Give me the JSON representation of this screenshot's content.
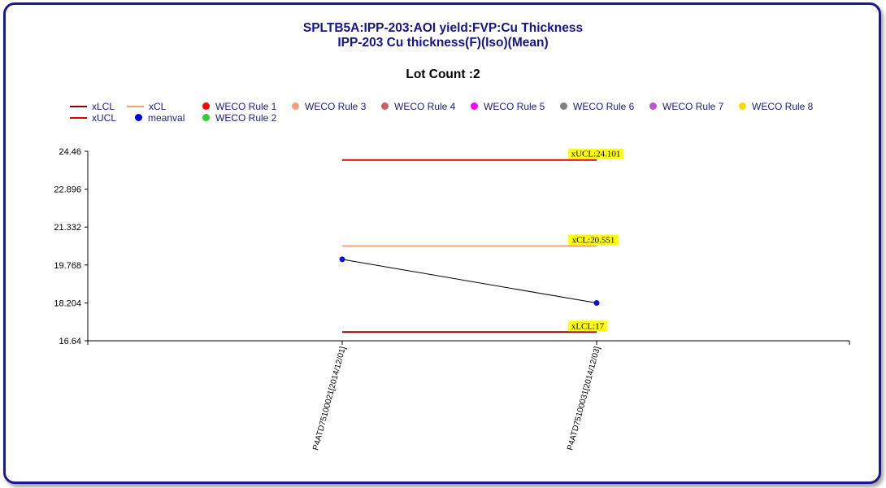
{
  "chart_data": {
    "type": "line",
    "title": "SPLTB5A:IPP-203:AOI yield:FVP:Cu Thickness",
    "subtitle": "IPP-203 Cu thickness(F)(Iso)(Mean)",
    "lot_count_label": "Lot Count :2",
    "categories": [
      "P4ATD75100021[2014/12/01]",
      "P4ATD75100031[2014/12/03]"
    ],
    "ylim": [
      16.64,
      24.46
    ],
    "yticks": [
      "24.46",
      "22.896",
      "21.332",
      "19.768",
      "18.204",
      "16.64"
    ],
    "series": [
      {
        "name": "meanval",
        "values": [
          20.0,
          18.2
        ]
      },
      {
        "name": "xUCL",
        "values": [
          24.101,
          24.101
        ]
      },
      {
        "name": "xCL",
        "values": [
          20.551,
          20.551
        ]
      },
      {
        "name": "xLCL",
        "values": [
          17,
          17
        ]
      }
    ],
    "limit_labels": [
      "xUCL:24.101",
      "xCL:20.551",
      "xLCL:17"
    ],
    "legend": [
      {
        "label": "xLCL",
        "kind": "line",
        "color": "#8b0000"
      },
      {
        "label": "xCL",
        "kind": "line",
        "color": "#f4a07a"
      },
      {
        "label": "WECO Rule 1",
        "kind": "dot",
        "color": "#ff0000"
      },
      {
        "label": "WECO Rule 3",
        "kind": "dot",
        "color": "#f4a07a"
      },
      {
        "label": "WECO Rule 4",
        "kind": "dot",
        "color": "#cd5c5c"
      },
      {
        "label": "WECO Rule 5",
        "kind": "dot",
        "color": "#ff00ff"
      },
      {
        "label": "WECO Rule 6",
        "kind": "dot",
        "color": "#808080"
      },
      {
        "label": "WECO Rule 7",
        "kind": "dot",
        "color": "#ba55d3"
      },
      {
        "label": "WECO Rule 8",
        "kind": "dot",
        "color": "#ffd700"
      },
      {
        "label": "xUCL",
        "kind": "line",
        "color": "#e00000"
      },
      {
        "label": "meanval",
        "kind": "dot",
        "color": "#0000dd"
      },
      {
        "label": "WECO Rule 2",
        "kind": "dot",
        "color": "#32cd32"
      }
    ],
    "colors": {
      "ucl": "#e00000",
      "cl": "#f4a07a",
      "lcl": "#8b0000",
      "meanval_point": "#1010e0",
      "meanval_line": "#000000",
      "limit_label_bg": "#ffff00"
    }
  }
}
